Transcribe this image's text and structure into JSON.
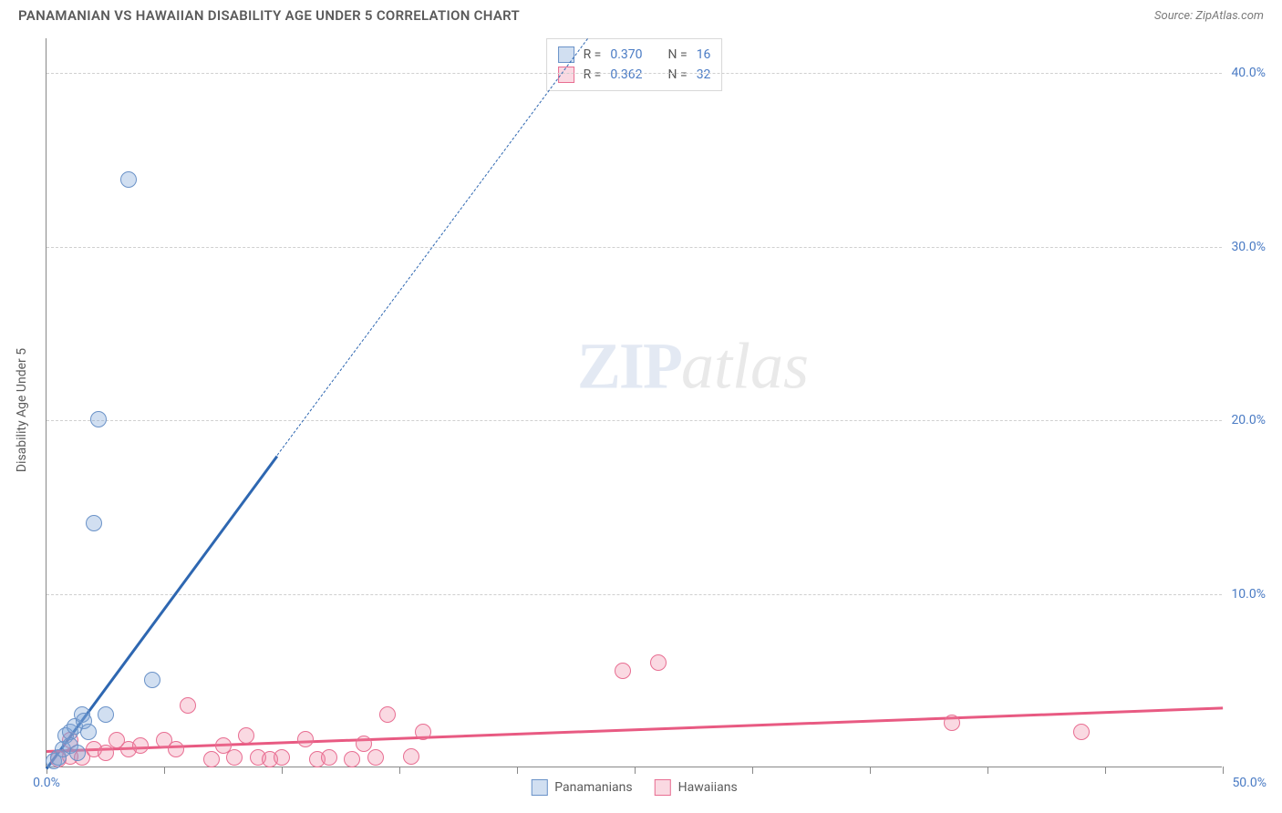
{
  "title": "PANAMANIAN VS HAWAIIAN DISABILITY AGE UNDER 5 CORRELATION CHART",
  "source": "Source: ZipAtlas.com",
  "y_axis_label": "Disability Age Under 5",
  "watermark": {
    "part1": "ZIP",
    "part2": "atlas"
  },
  "chart": {
    "type": "scatter",
    "xlim": [
      0,
      50
    ],
    "ylim": [
      0,
      42
    ],
    "x_ticks": [
      0,
      5,
      10,
      15,
      20,
      25,
      30,
      35,
      40,
      45,
      50
    ],
    "y_gridlines": [
      10,
      20,
      30,
      40
    ],
    "y_tick_labels": [
      "10.0%",
      "20.0%",
      "30.0%",
      "40.0%"
    ],
    "x_tick_labels": {
      "0": "0.0%",
      "50": "50.0%"
    },
    "background_color": "#ffffff",
    "grid_color": "#d0d0d0",
    "axis_color": "#888888",
    "tick_label_color": "#4a7bc4"
  },
  "series": {
    "panamanians": {
      "label": "Panamanians",
      "color_fill": "rgba(122,162,216,0.35)",
      "color_stroke": "#6a92c8",
      "marker_radius": 9,
      "trend_color": "#2e67b1",
      "points": [
        {
          "x": 0.3,
          "y": 0.3
        },
        {
          "x": 0.5,
          "y": 0.5
        },
        {
          "x": 0.7,
          "y": 1.0
        },
        {
          "x": 0.8,
          "y": 1.8
        },
        {
          "x": 1.0,
          "y": 2.0
        },
        {
          "x": 1.2,
          "y": 2.3
        },
        {
          "x": 1.5,
          "y": 3.0
        },
        {
          "x": 1.6,
          "y": 2.6
        },
        {
          "x": 1.8,
          "y": 2.0
        },
        {
          "x": 2.5,
          "y": 3.0
        },
        {
          "x": 2.0,
          "y": 14.0
        },
        {
          "x": 2.2,
          "y": 20.0
        },
        {
          "x": 3.5,
          "y": 33.8
        },
        {
          "x": 4.5,
          "y": 5.0
        },
        {
          "x": 1.0,
          "y": 1.2
        },
        {
          "x": 1.3,
          "y": 0.8
        }
      ],
      "trend": {
        "x1": 0,
        "y1": 0,
        "x2_solid": 9.8,
        "y2_solid": 18.0,
        "x2_dash": 23.0,
        "y2_dash": 42.0
      }
    },
    "hawaiians": {
      "label": "Hawaiians",
      "color_fill": "rgba(238,130,160,0.30)",
      "color_stroke": "#e86e92",
      "marker_radius": 9,
      "trend_color": "#e85a82",
      "points": [
        {
          "x": 0.5,
          "y": 0.4
        },
        {
          "x": 1.0,
          "y": 0.6
        },
        {
          "x": 1.0,
          "y": 1.5
        },
        {
          "x": 1.5,
          "y": 0.5
        },
        {
          "x": 2.0,
          "y": 1.0
        },
        {
          "x": 2.5,
          "y": 0.8
        },
        {
          "x": 3.0,
          "y": 1.5
        },
        {
          "x": 3.5,
          "y": 1.0
        },
        {
          "x": 4.0,
          "y": 1.2
        },
        {
          "x": 5.0,
          "y": 1.5
        },
        {
          "x": 5.5,
          "y": 1.0
        },
        {
          "x": 6.0,
          "y": 3.5
        },
        {
          "x": 7.0,
          "y": 0.4
        },
        {
          "x": 7.5,
          "y": 1.2
        },
        {
          "x": 8.0,
          "y": 0.5
        },
        {
          "x": 8.5,
          "y": 1.8
        },
        {
          "x": 9.0,
          "y": 0.5
        },
        {
          "x": 9.5,
          "y": 0.4
        },
        {
          "x": 10.0,
          "y": 0.5
        },
        {
          "x": 11.0,
          "y": 1.6
        },
        {
          "x": 11.5,
          "y": 0.4
        },
        {
          "x": 12.0,
          "y": 0.5
        },
        {
          "x": 13.0,
          "y": 0.4
        },
        {
          "x": 13.5,
          "y": 1.3
        },
        {
          "x": 14.0,
          "y": 0.5
        },
        {
          "x": 14.5,
          "y": 3.0
        },
        {
          "x": 15.5,
          "y": 0.6
        },
        {
          "x": 16.0,
          "y": 2.0
        },
        {
          "x": 24.5,
          "y": 5.5
        },
        {
          "x": 26.0,
          "y": 6.0
        },
        {
          "x": 38.5,
          "y": 2.5
        },
        {
          "x": 44.0,
          "y": 2.0
        }
      ],
      "trend": {
        "x1": 0,
        "y1": 1.0,
        "x2": 50,
        "y2": 3.5
      }
    }
  },
  "stats": {
    "rows": [
      {
        "series": "panamanians",
        "r_label": "R =",
        "r": "0.370",
        "n_label": "N =",
        "n": "16"
      },
      {
        "series": "hawaiians",
        "r_label": "R =",
        "r": "0.362",
        "n_label": "N =",
        "n": "32"
      }
    ]
  },
  "legend": [
    {
      "series": "panamanians",
      "label": "Panamanians"
    },
    {
      "series": "hawaiians",
      "label": "Hawaiians"
    }
  ]
}
